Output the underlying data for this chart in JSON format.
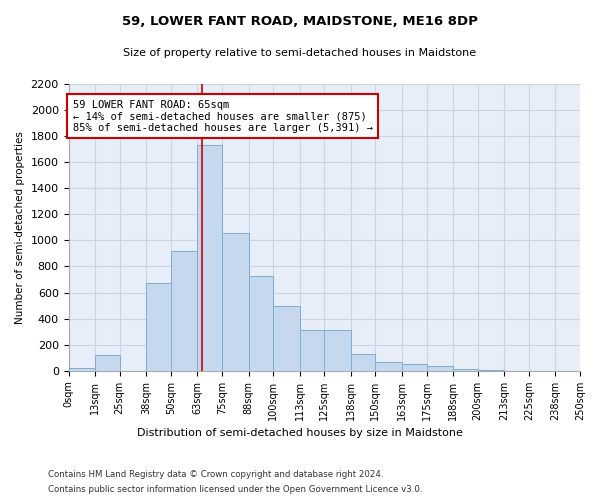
{
  "title": "59, LOWER FANT ROAD, MAIDSTONE, ME16 8DP",
  "subtitle": "Size of property relative to semi-detached houses in Maidstone",
  "xlabel": "Distribution of semi-detached houses by size in Maidstone",
  "ylabel": "Number of semi-detached properties",
  "footer1": "Contains HM Land Registry data © Crown copyright and database right 2024.",
  "footer2": "Contains public sector information licensed under the Open Government Licence v3.0.",
  "property_size": 65,
  "property_label": "59 LOWER FANT ROAD: 65sqm",
  "pct_smaller": 14,
  "n_smaller": 875,
  "pct_larger": 85,
  "n_larger": "5,391",
  "bar_color": "#c5d8ee",
  "bar_edge_color": "#7bafd4",
  "vline_color": "#cc0000",
  "annotation_border_color": "#cc0000",
  "grid_color": "#c8d4e4",
  "bg_color": "#e8eef8",
  "bins": [
    0,
    13,
    25,
    38,
    50,
    63,
    75,
    88,
    100,
    113,
    125,
    138,
    150,
    163,
    175,
    188,
    200,
    213,
    225,
    238,
    250
  ],
  "counts": [
    20,
    120,
    0,
    670,
    920,
    1730,
    1060,
    730,
    500,
    310,
    310,
    125,
    70,
    50,
    35,
    15,
    5,
    0,
    0,
    0
  ],
  "ylim": [
    0,
    2200
  ],
  "yticks": [
    0,
    200,
    400,
    600,
    800,
    1000,
    1200,
    1400,
    1600,
    1800,
    2000,
    2200
  ]
}
